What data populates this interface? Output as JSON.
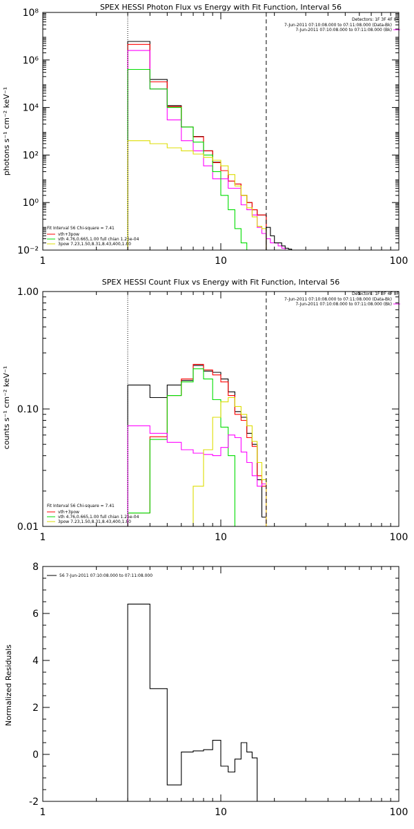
{
  "page": {
    "background": "#ffffff"
  },
  "colors": {
    "black": "#000000",
    "red": "#ff0000",
    "green": "#00dd00",
    "magenta": "#ff00ff",
    "yellow": "#dddd00"
  },
  "chart_data": [
    {
      "id": "photon",
      "type": "line",
      "step": true,
      "log_x": true,
      "log_y": true,
      "title": "SPEX HESSI Photon Flux vs Energy with Fit Function, Interval 56",
      "xlabel": "",
      "ylabel": "photons s⁻¹ cm⁻² keV⁻¹",
      "xlim": [
        1,
        100
      ],
      "ylim": [
        0.01,
        100000000
      ],
      "x_ticks": [
        {
          "v": 1,
          "label": "1"
        },
        {
          "v": 10,
          "label": "10"
        },
        {
          "v": 100,
          "label": "100"
        }
      ],
      "y_ticks": [
        {
          "v": 0.01,
          "label": "10⁻²"
        },
        {
          "v": 1,
          "label": "10⁰"
        },
        {
          "v": 100,
          "label": "10²"
        },
        {
          "v": 10000,
          "label": "10⁴"
        },
        {
          "v": 1000000,
          "label": "10⁶"
        },
        {
          "v": 100000000,
          "label": "10⁸"
        }
      ],
      "vlines": [
        {
          "x": 3,
          "style": "dotted"
        },
        {
          "x": 18,
          "style": "dashed"
        }
      ],
      "detectors": "Detectors: 1F 3F 4F 8F",
      "time_legend": [
        {
          "text": "7-Jun-2011 07:10:08.000 to 07:11:08.000 (Data-Bk)",
          "color": "#000000"
        },
        {
          "text": "7-Jun-2011 07:10:08.000 to 07:11:08.000 (Bk)",
          "color": "#ff00ff"
        }
      ],
      "fit_header": "Fit Interval 56   Chi-square = 7.41",
      "fit_legend": [
        {
          "text": "vth+3pow",
          "color": "#ff0000"
        },
        {
          "text": "vth 4.76,0.665,1.00  full chian 1.25e-04",
          "color": "#00dd00"
        },
        {
          "text": "3pow 7.23,1.50,8.31,8.43,400,1.80",
          "color": "#dddd00"
        }
      ],
      "series": [
        {
          "color": "#000000",
          "edges": [
            3,
            4,
            5,
            6,
            7,
            8,
            9,
            10,
            11,
            12,
            13,
            14,
            15,
            16,
            17,
            18
          ],
          "values": [
            6000000,
            150000,
            12000,
            1500,
            600,
            150,
            50,
            22,
            8,
            6,
            2,
            1,
            0.5,
            0.3,
            0.3
          ]
        },
        {
          "color": "#ff0000",
          "edges": [
            3,
            4,
            5,
            6,
            7,
            8,
            9,
            10,
            11,
            12,
            13,
            14,
            15,
            16,
            17,
            18
          ],
          "values": [
            4500000,
            120000,
            11000,
            1500,
            580,
            150,
            48,
            22,
            8,
            6,
            2,
            1,
            0.5,
            0.3,
            0.3
          ]
        },
        {
          "color": "#ff00ff",
          "edges": [
            3,
            4,
            5,
            6,
            7,
            8,
            9,
            10,
            11,
            12,
            13,
            14,
            15,
            16,
            17,
            18,
            19,
            20,
            21,
            22,
            23,
            24
          ],
          "values": [
            2500000,
            60000,
            3000,
            400,
            150,
            35,
            10,
            10,
            4,
            4,
            0.8,
            0.5,
            0.3,
            0.09,
            0.05,
            0.03,
            0.02,
            0.02,
            0.015,
            0.012,
            0.01
          ]
        },
        {
          "color": "#00dd00",
          "edges": [
            3,
            4,
            5,
            6,
            7,
            8,
            9,
            10,
            11,
            12,
            13,
            14
          ],
          "values": [
            400000,
            60000,
            10000,
            1500,
            350,
            100,
            20,
            2,
            0.5,
            0.08,
            0.02
          ]
        },
        {
          "color": "#dddd00",
          "edges": [
            3,
            4,
            5,
            6,
            7,
            8,
            9,
            10,
            11,
            12,
            13,
            14,
            15,
            16,
            17,
            18
          ],
          "values": [
            400,
            300,
            200,
            150,
            110,
            80,
            60,
            35,
            15,
            5,
            2,
            0.6,
            0.25,
            0.1,
            0.08
          ]
        },
        {
          "color": "#000000",
          "edges": [
            18,
            19,
            20,
            21,
            22,
            23,
            24,
            25,
            26
          ],
          "values": [
            0.09,
            0.04,
            0.02,
            0.02,
            0.015,
            0.012,
            0.011,
            0.01
          ]
        }
      ]
    },
    {
      "id": "count",
      "type": "line",
      "step": true,
      "log_x": true,
      "log_y": true,
      "title": "SPEX HESSI Count Flux vs Energy with Fit Function, Interval 56",
      "xlabel": "",
      "ylabel": "counts s⁻¹ cm⁻² keV⁻¹",
      "xlim": [
        1,
        100
      ],
      "ylim": [
        0.01,
        1.0
      ],
      "x_ticks": [
        {
          "v": 1,
          "label": "1"
        },
        {
          "v": 10,
          "label": "10"
        },
        {
          "v": 100,
          "label": "100"
        }
      ],
      "y_ticks": [
        {
          "v": 0.01,
          "label": "0.01"
        },
        {
          "v": 0.1,
          "label": "0.10"
        },
        {
          "v": 1.0,
          "label": "1.00"
        }
      ],
      "vlines": [
        {
          "x": 3,
          "style": "dotted"
        },
        {
          "x": 18,
          "style": "dashed"
        }
      ],
      "detectors": "Detectors: 1F 3F 4F 8F",
      "time_legend": [
        {
          "text": "7-Jun-2011 07:10:08.000 to 07:11:08.000 (Data-Bk)",
          "color": "#000000"
        },
        {
          "text": "7-Jun-2011 07:10:08.000 to 07:11:08.000 (Bk)",
          "color": "#ff00ff"
        }
      ],
      "fit_header": "Fit Interval 56   Chi-square = 7.41",
      "fit_legend": [
        {
          "text": "vth+3pow",
          "color": "#ff0000"
        },
        {
          "text": "vth 4.76,0.665,1.00  full chian 1.25e-04",
          "color": "#00dd00"
        },
        {
          "text": "3pow 7.23,1.50,8.31,8.43,400,1.80",
          "color": "#dddd00"
        }
      ],
      "series": [
        {
          "color": "#000000",
          "edges": [
            3,
            4,
            5,
            6,
            7,
            8,
            9,
            10,
            11,
            12,
            13,
            14,
            15,
            16,
            17,
            18
          ],
          "values": [
            0.16,
            0.125,
            0.16,
            0.175,
            0.235,
            0.21,
            0.205,
            0.18,
            0.14,
            0.095,
            0.085,
            0.062,
            0.05,
            0.025,
            0.012
          ]
        },
        {
          "color": "#ff0000",
          "edges": [
            3,
            4,
            5,
            6,
            7,
            8,
            9,
            10,
            11,
            12,
            13,
            14,
            15,
            16,
            17,
            18
          ],
          "values": [
            0.013,
            0.058,
            0.13,
            0.18,
            0.24,
            0.215,
            0.195,
            0.17,
            0.13,
            0.09,
            0.08,
            0.057,
            0.048,
            0.027,
            0.022
          ]
        },
        {
          "color": "#00dd00",
          "edges": [
            3,
            4,
            5,
            6,
            7,
            8,
            9,
            10,
            11,
            12,
            13
          ],
          "values": [
            0.013,
            0.055,
            0.13,
            0.17,
            0.22,
            0.18,
            0.12,
            0.07,
            0.04,
            0.01
          ]
        },
        {
          "color": "#ff00ff",
          "edges": [
            3,
            4,
            5,
            6,
            7,
            8,
            9,
            10,
            11,
            12,
            13,
            14,
            15,
            16,
            17,
            18
          ],
          "values": [
            0.072,
            0.062,
            0.052,
            0.045,
            0.042,
            0.041,
            0.04,
            0.047,
            0.06,
            0.057,
            0.043,
            0.035,
            0.027,
            0.022,
            0.023
          ]
        },
        {
          "color": "#dddd00",
          "edges": [
            6,
            7,
            8,
            9,
            10,
            11,
            12,
            13,
            14,
            15,
            16,
            17,
            18
          ],
          "values": [
            0.01,
            0.022,
            0.045,
            0.085,
            0.115,
            0.125,
            0.105,
            0.09,
            0.072,
            0.053,
            0.035,
            0.025
          ]
        }
      ]
    },
    {
      "id": "residuals",
      "type": "line",
      "step": true,
      "log_x": true,
      "log_y": false,
      "title": "",
      "xlabel": "",
      "ylabel": "Normalized Residuals",
      "xlim": [
        1,
        100
      ],
      "ylim": [
        -2,
        8
      ],
      "x_ticks": [
        {
          "v": 1,
          "label": "1"
        },
        {
          "v": 10,
          "label": "10"
        },
        {
          "v": 100,
          "label": "100"
        }
      ],
      "y_ticks": [
        {
          "v": -2,
          "label": "-2"
        },
        {
          "v": 0,
          "label": "0"
        },
        {
          "v": 2,
          "label": "2"
        },
        {
          "v": 4,
          "label": "4"
        },
        {
          "v": 6,
          "label": "6"
        },
        {
          "v": 8,
          "label": "8"
        }
      ],
      "vlines": [],
      "time_legend": [
        {
          "text": "56  7-Jun-2011 07:10:08.000 to 07:11:08.000",
          "color": "#000000"
        }
      ],
      "series": [
        {
          "color": "#000000",
          "edges": [
            3,
            4,
            5,
            6,
            7,
            8,
            9,
            10,
            11,
            12,
            13,
            14,
            15,
            16,
            17,
            18
          ],
          "values": [
            6.4,
            2.8,
            -1.3,
            0.1,
            0.15,
            0.2,
            0.6,
            -0.5,
            -0.75,
            -0.2,
            0.5,
            0.1,
            -0.15,
            -2,
            -2
          ]
        }
      ]
    }
  ]
}
